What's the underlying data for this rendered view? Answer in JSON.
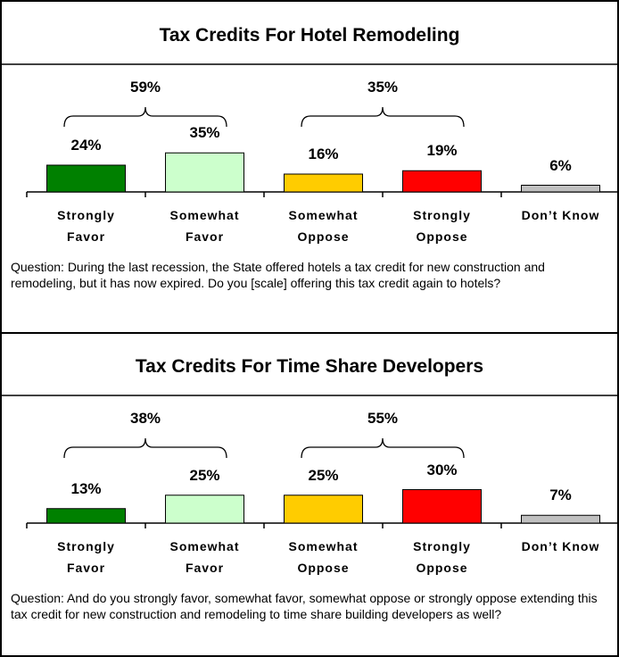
{
  "chart_data": [
    {
      "type": "bar",
      "title": "Tax Credits For Hotel Remodeling",
      "categories": [
        "Strongly Favor",
        "Somewhat Favor",
        "Somewhat Oppose",
        "Strongly Oppose",
        "Don’t Know"
      ],
      "values": [
        24,
        35,
        16,
        19,
        6
      ],
      "value_labels": [
        "24%",
        "35%",
        "16%",
        "19%",
        "6%"
      ],
      "colors": [
        "#008000",
        "#ccffcc",
        "#ffcc00",
        "#ff0000",
        "#c0c0c0"
      ],
      "groups": [
        {
          "value": 59,
          "label": "59%"
        },
        {
          "value": 35,
          "label": "35%"
        }
      ],
      "question": "Question: During the last recession, the State offered hotels a tax credit for new construction and remodeling, but it has now expired.  Do you [scale] offering this tax credit again to hotels?"
    },
    {
      "type": "bar",
      "title": "Tax Credits For Time Share Developers",
      "categories": [
        "Strongly Favor",
        "Somewhat Favor",
        "Somewhat Oppose",
        "Strongly Oppose",
        "Don’t Know"
      ],
      "values": [
        13,
        25,
        25,
        30,
        7
      ],
      "value_labels": [
        "13%",
        "25%",
        "25%",
        "30%",
        "7%"
      ],
      "colors": [
        "#008000",
        "#ccffcc",
        "#ffcc00",
        "#ff0000",
        "#c0c0c0"
      ],
      "groups": [
        {
          "value": 38,
          "label": "38%"
        },
        {
          "value": 55,
          "label": "55%"
        }
      ],
      "question": "Question: And do you strongly favor, somewhat favor, somewhat oppose or strongly oppose extending this tax credit for new construction and remodeling to time share building developers as well?"
    }
  ]
}
